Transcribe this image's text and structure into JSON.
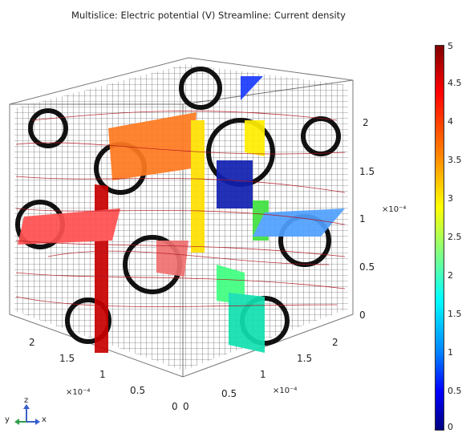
{
  "plot": {
    "title": "Multislice: Electric potential (V)  Streamline: Current density",
    "colorbar": {
      "labels": [
        "5",
        "4.5",
        "4",
        "3.5",
        "3",
        "2.5",
        "2",
        "1.5",
        "1",
        "0.5",
        "0"
      ],
      "colors": [
        "#7f0000",
        "#ff0000",
        "#ff8000",
        "#ffff00",
        "#80ff80",
        "#00ffff",
        "#0080ff",
        "#0000ff",
        "#00007f"
      ]
    },
    "axis_z": {
      "ticks": [
        "2",
        "1.5",
        "1",
        "0.5",
        "0"
      ],
      "exponent": "×10⁻⁴"
    },
    "axis_y_left": {
      "ticks": [
        "2",
        "1.5",
        "1",
        "0.5",
        "0"
      ],
      "exponent": "×10⁻⁴"
    },
    "axis_x_right": {
      "ticks": [
        "0",
        "0.5",
        "1",
        "1.5",
        "2"
      ],
      "exponent": "×10⁻⁴"
    },
    "triad": {
      "z": "z",
      "y": "y",
      "x": "x"
    }
  }
}
